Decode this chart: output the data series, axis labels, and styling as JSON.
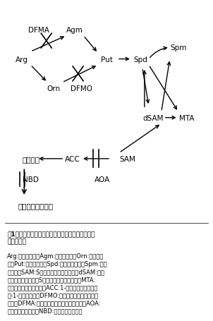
{
  "title": "図1．ポリアミンとエチレンの代謝図および阻害剤\nの作用部位",
  "legend_text": "Arg:アルギニン、Agm:アグマチン、Orn:オルニチ\nン、Put:プトレシン、Spd:スペルミジン、Spm:スペ\nルミン、SAM:Sアデノシルメチオニン、dSAM:デカ\nルボキシレイテッドSアデノシルメチオニン、MTA:\nメチルチオアデノシン、ACC:1-アミノシクロプロパ\nン-1-カルボン酸、DFMO:ジフルオロメチルオルニ\nチン、DFMA:ジフルオロメチルアルギニン、AOA:\nアミノオキシ酢酸、NBD:ノルボルナジエン",
  "bg_color": "#ffffff"
}
